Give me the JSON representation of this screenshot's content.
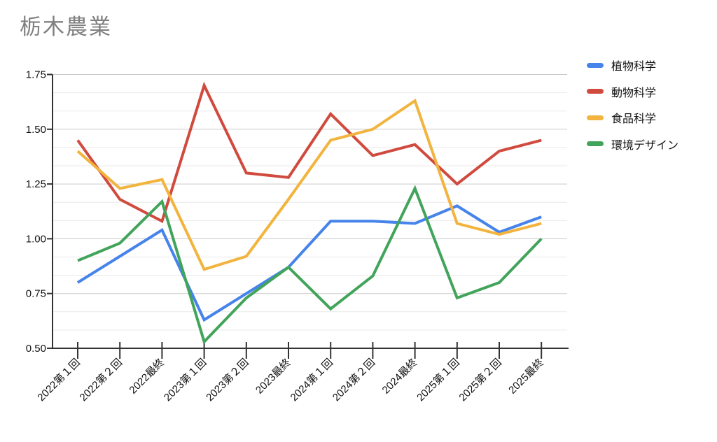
{
  "title": {
    "text": "栃木農業"
  },
  "chart_data": {
    "type": "line",
    "title": "栃木農業",
    "categories": [
      "2022第１回",
      "2022第２回",
      "2022最終",
      "2023第１回",
      "2023第２回",
      "2023最終",
      "2024第１回",
      "2024第２回",
      "2024最終",
      "2025第１回",
      "2025第２回",
      "2025最終"
    ],
    "series": [
      {
        "name": "植物科学",
        "color": "#4683EA",
        "values": [
          0.8,
          0.92,
          1.04,
          0.63,
          0.75,
          0.87,
          1.08,
          1.08,
          1.07,
          1.15,
          1.03,
          1.1
        ]
      },
      {
        "name": "動物科学",
        "color": "#D04A3E",
        "values": [
          1.45,
          1.18,
          1.08,
          1.7,
          1.3,
          1.28,
          1.57,
          1.38,
          1.43,
          1.25,
          1.4,
          1.45
        ]
      },
      {
        "name": "食品科学",
        "color": "#F2B43E",
        "values": [
          1.4,
          1.23,
          1.27,
          0.86,
          0.92,
          1.18,
          1.45,
          1.5,
          1.63,
          1.07,
          1.02,
          1.07
        ]
      },
      {
        "name": "環境デザイン",
        "color": "#42A45B",
        "values": [
          0.9,
          0.98,
          1.17,
          0.53,
          0.73,
          0.87,
          0.68,
          0.83,
          1.23,
          0.73,
          0.8,
          1.0
        ]
      }
    ],
    "xlabel": "",
    "ylabel": "",
    "y_axis": {
      "min": 0.5,
      "max": 1.75,
      "major_step": 0.25,
      "minor_divisions": 3,
      "tick_labels": [
        "0.50",
        "0.75",
        "1.00",
        "1.25",
        "1.50",
        "1.75"
      ]
    },
    "x_axis": {
      "label_rotation_deg": -45
    },
    "grid": {
      "on": true,
      "major_color": "#c9c9c9",
      "minor_color": "#e9e9e9",
      "axis_color": "#333333"
    },
    "legend_position": "right",
    "title_color": "#808080",
    "tick_label_color": "#111111",
    "background": "#ffffff"
  }
}
